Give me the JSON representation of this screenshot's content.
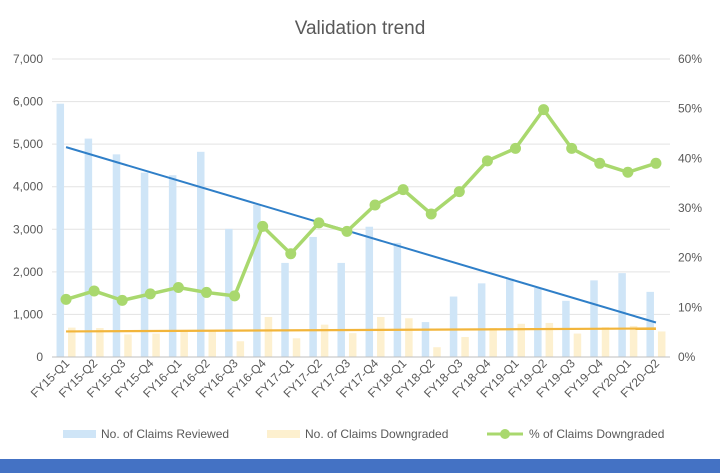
{
  "colors": {
    "reviewed": "#cfe5f7",
    "downgraded": "#fdf0cf",
    "pct_line": "#a9d86e",
    "trend_reviewed": "#2f7fc8",
    "trend_downgraded": "#f2b53b",
    "axis_text": "#595959",
    "grid": "#e3e3e3",
    "bottom_bar": "#4472c4"
  },
  "chart_data": {
    "type": "bar",
    "title": "Validation trend",
    "categories": [
      "FY15-Q1",
      "FY15-Q2",
      "FY15-Q3",
      "FY15-Q4",
      "FY16-Q1",
      "FY16-Q2",
      "FY16-Q3",
      "FY16-Q4",
      "FY17-Q1",
      "FY17-Q2",
      "FY17-Q3",
      "FY17-Q4",
      "FY18-Q1",
      "FY18-Q2",
      "FY18-Q3",
      "FY18-Q4",
      "FY19-Q1",
      "FY19-Q2",
      "FY19-Q3",
      "FY19-Q4",
      "FY20-Q1",
      "FY20-Q2"
    ],
    "series": [
      {
        "name": "No. of Claims Reviewed",
        "type": "bar",
        "axis": "left",
        "values": [
          5950,
          5130,
          4760,
          4330,
          4270,
          4820,
          3010,
          3580,
          2210,
          2820,
          2210,
          3060,
          2680,
          820,
          1420,
          1730,
          1840,
          1620,
          1320,
          1800,
          1970,
          1530
        ]
      },
      {
        "name": "No. of Claims Downgraded",
        "type": "bar",
        "axis": "left",
        "values": [
          690,
          680,
          530,
          550,
          600,
          630,
          370,
          940,
          440,
          760,
          560,
          940,
          910,
          230,
          470,
          680,
          780,
          800,
          550,
          700,
          730,
          600
        ]
      },
      {
        "name": "% of Claims Downgraded",
        "type": "line",
        "axis": "right",
        "values": [
          11.6,
          13.3,
          11.4,
          12.7,
          14.0,
          13.0,
          12.3,
          26.3,
          20.8,
          27.0,
          25.3,
          30.6,
          33.7,
          28.8,
          33.3,
          39.5,
          42.0,
          49.8,
          42.0,
          39.0,
          37.2,
          39.0
        ]
      }
    ],
    "trendlines": [
      {
        "of": "No. of Claims Reviewed",
        "start": 4930,
        "end": 810
      },
      {
        "of": "No. of Claims Downgraded",
        "start": 600,
        "end": 670
      }
    ],
    "y_left": {
      "min": 0,
      "max": 7000,
      "ticks": [
        "0",
        "1,000",
        "2,000",
        "3,000",
        "4,000",
        "5,000",
        "6,000",
        "7,000"
      ]
    },
    "y_right": {
      "min": 0,
      "max": 60,
      "ticks": [
        "0%",
        "10%",
        "20%",
        "30%",
        "40%",
        "50%",
        "60%"
      ]
    },
    "grid": true,
    "legend_position": "bottom"
  }
}
